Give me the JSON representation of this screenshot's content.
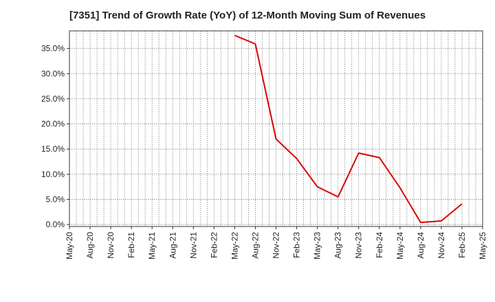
{
  "chart_data": {
    "type": "line",
    "title": "[7351]  Trend of Growth Rate (YoY) of 12-Month Moving Sum of Revenues",
    "xlabel": "",
    "ylabel": "",
    "x_ticks": [
      "May-20",
      "Aug-20",
      "Nov-20",
      "Feb-21",
      "May-21",
      "Aug-21",
      "Nov-21",
      "Feb-22",
      "May-22",
      "Aug-22",
      "Nov-22",
      "Feb-23",
      "May-23",
      "Aug-23",
      "Nov-23",
      "Feb-24",
      "May-24",
      "Aug-24",
      "Nov-24",
      "Feb-25",
      "May-25"
    ],
    "y_ticks": [
      "0.0%",
      "5.0%",
      "10.0%",
      "15.0%",
      "20.0%",
      "25.0%",
      "30.0%",
      "35.0%"
    ],
    "y_tick_values": [
      0,
      5,
      10,
      15,
      20,
      25,
      30,
      35
    ],
    "ylim": [
      -0.4,
      38.5
    ],
    "grid": true,
    "color": "#dd0000",
    "series": [
      {
        "x": [
          "May-22",
          "Aug-22",
          "Nov-22",
          "Feb-23",
          "May-23",
          "Aug-23",
          "Nov-23",
          "Feb-24",
          "May-24",
          "Aug-24",
          "Nov-24",
          "Feb-25"
        ],
        "values": [
          37.6,
          35.9,
          17.0,
          13.1,
          7.5,
          5.5,
          14.2,
          13.3,
          7.3,
          0.4,
          0.7,
          4.1
        ]
      }
    ]
  }
}
